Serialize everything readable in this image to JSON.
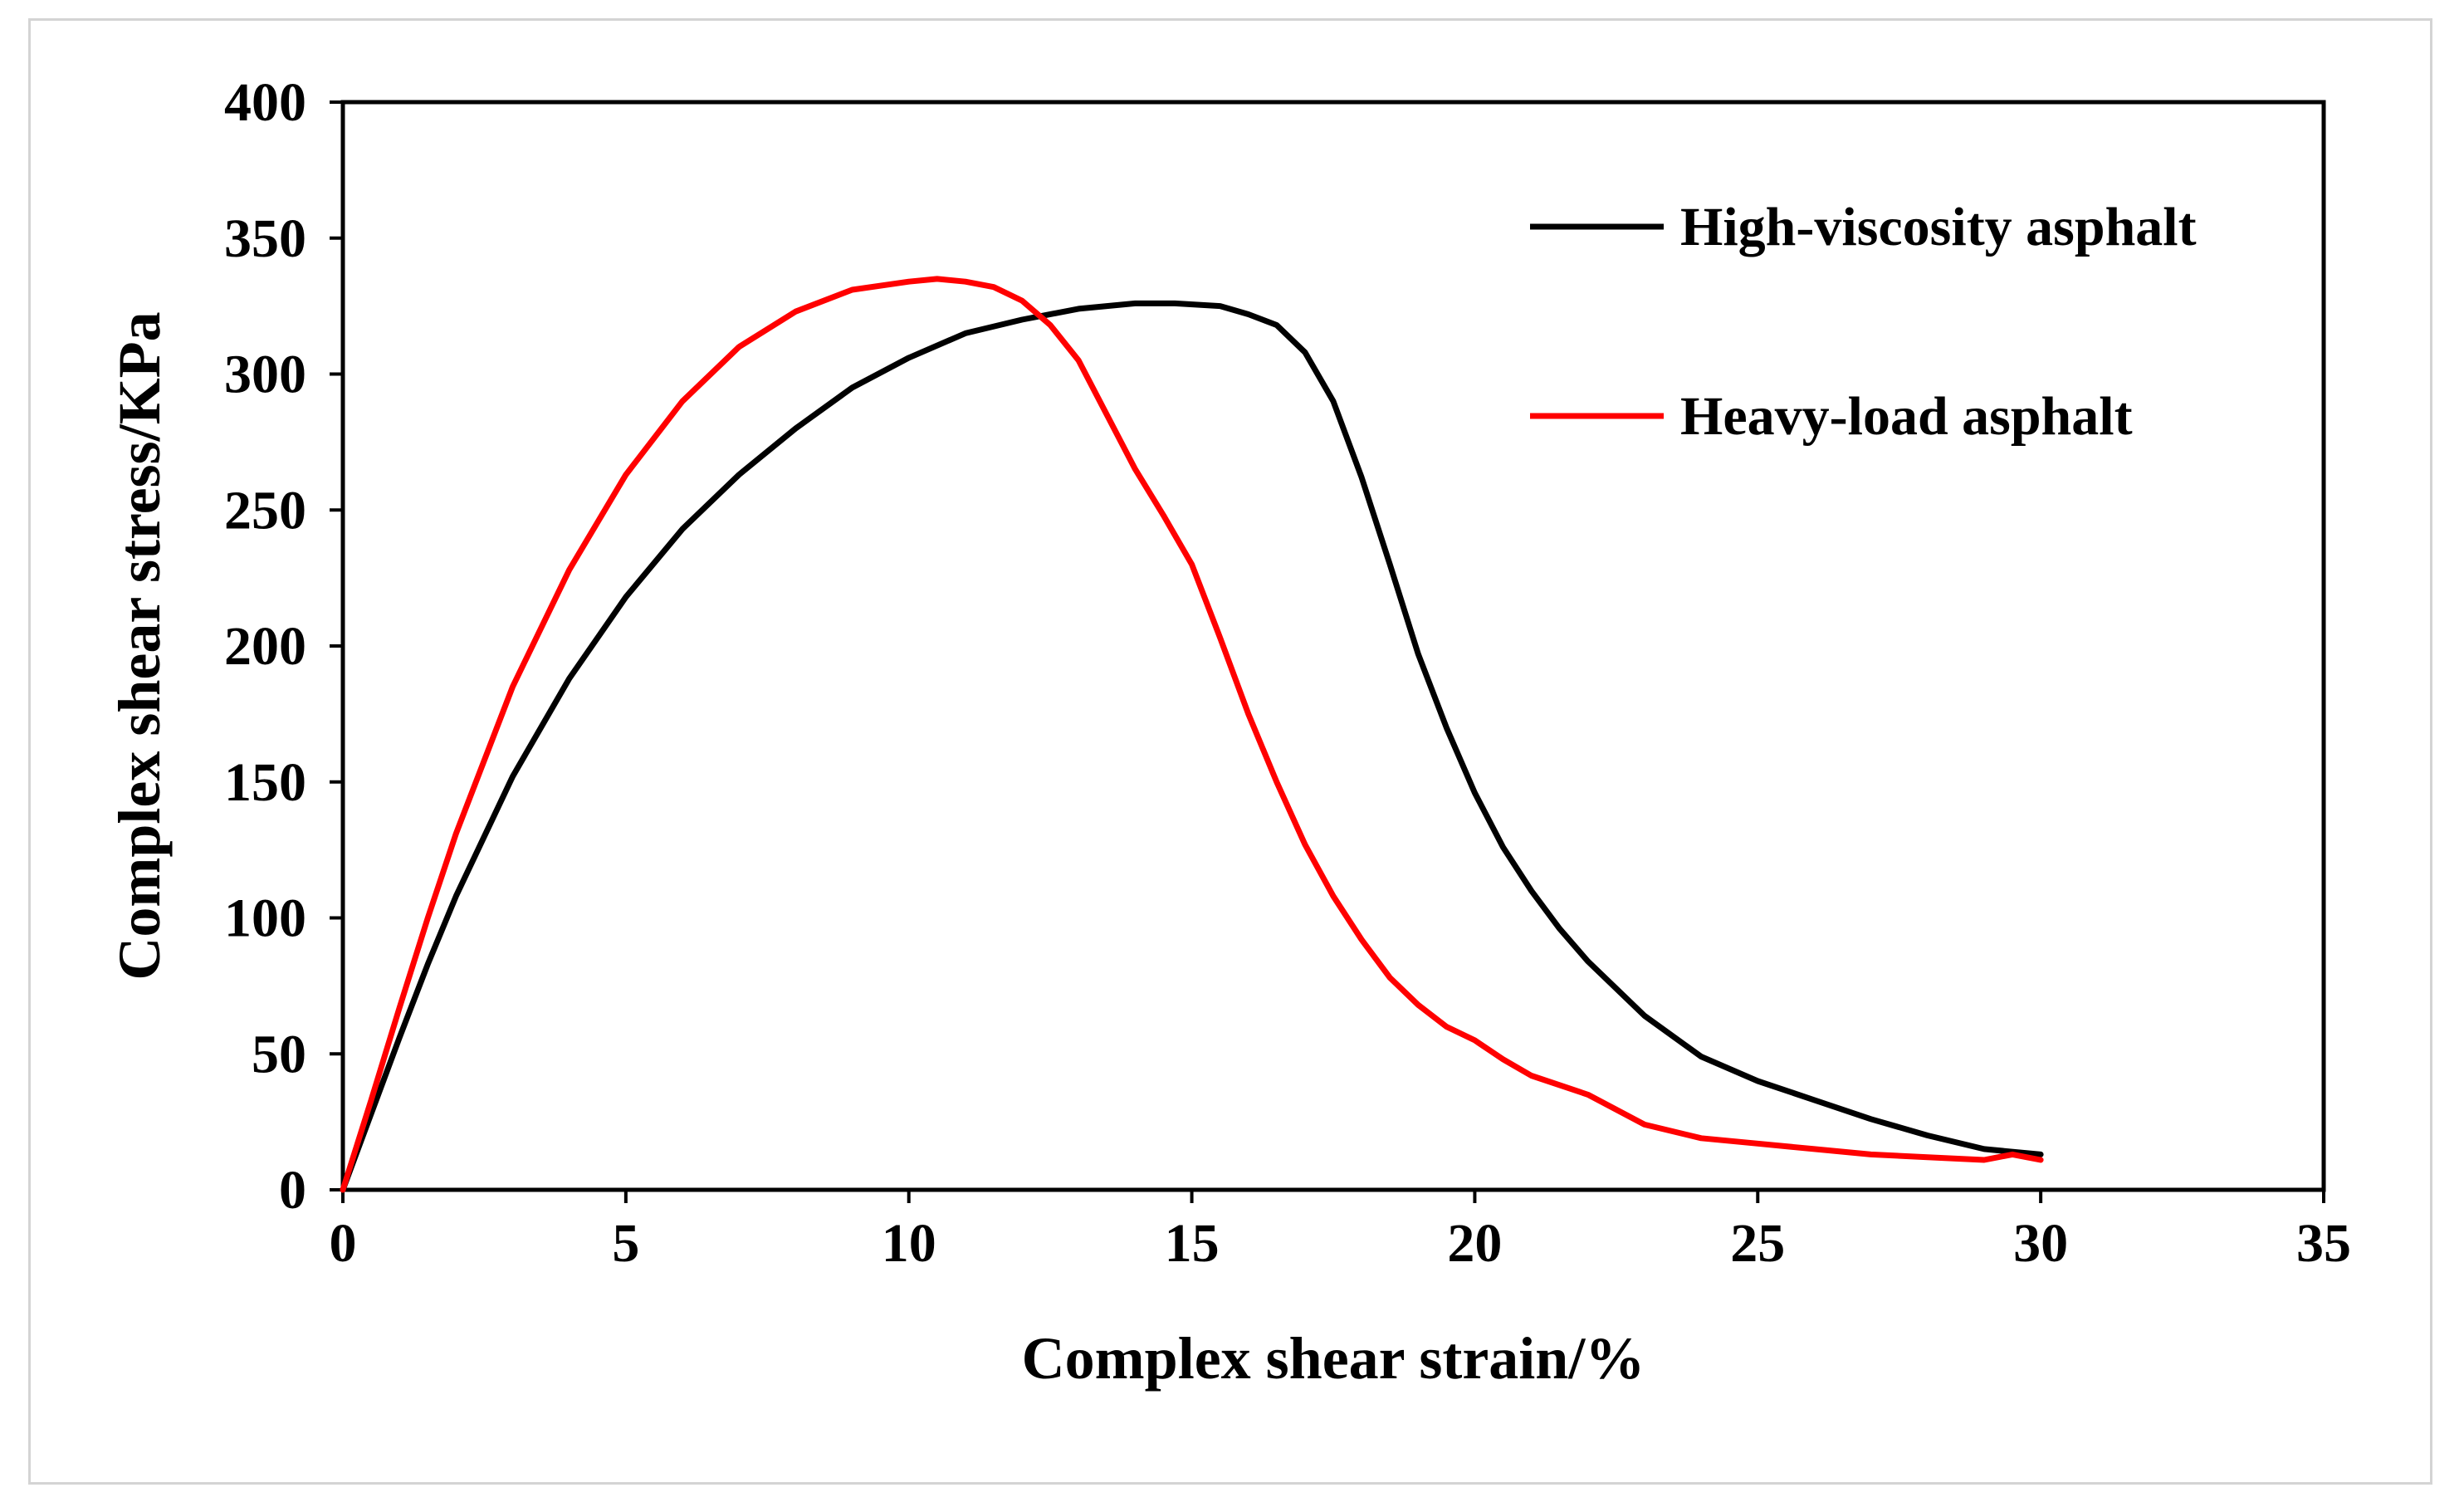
{
  "chart_data": {
    "type": "line",
    "title": "",
    "xlabel": "Complex shear strain/%",
    "ylabel": "Complex shear stress/KPa",
    "xlim": [
      0,
      35
    ],
    "ylim": [
      0,
      400
    ],
    "xticks": [
      0,
      5,
      10,
      15,
      20,
      25,
      30,
      35
    ],
    "yticks": [
      0,
      50,
      100,
      150,
      200,
      250,
      300,
      350,
      400
    ],
    "grid": false,
    "legend_position": "top-right",
    "series": [
      {
        "name": "High-viscosity asphalt",
        "color": "#000000",
        "x": [
          0,
          0.5,
          1,
          1.5,
          2,
          3,
          4,
          5,
          6,
          7,
          8,
          9,
          10,
          11,
          12,
          13,
          14,
          14.7,
          15.5,
          16,
          16.5,
          17,
          17.5,
          18,
          18.5,
          19,
          19.5,
          20,
          20.5,
          21,
          21.5,
          22,
          23,
          24,
          25,
          26,
          27,
          28,
          29,
          30
        ],
        "y": [
          0,
          28,
          56,
          83,
          108,
          152,
          188,
          218,
          243,
          263,
          280,
          295,
          306,
          315,
          320,
          324,
          326,
          326,
          325,
          322,
          318,
          308,
          290,
          262,
          230,
          197,
          170,
          146,
          126,
          110,
          96,
          84,
          64,
          49,
          40,
          33,
          26,
          20,
          15,
          13
        ]
      },
      {
        "name": "Heavy-load asphalt",
        "color": "#ff0000",
        "x": [
          0,
          0.5,
          1,
          1.5,
          2,
          3,
          4,
          5,
          6,
          7,
          8,
          9,
          10,
          10.5,
          11,
          11.5,
          12,
          12.5,
          13,
          13.5,
          14,
          14.5,
          15,
          15.5,
          16,
          16.5,
          17,
          17.5,
          18,
          18.5,
          19,
          19.5,
          20,
          20.5,
          21,
          22,
          23,
          24,
          25,
          26,
          27,
          28,
          29,
          29.5,
          30
        ],
        "y": [
          0,
          33,
          67,
          100,
          131,
          185,
          228,
          263,
          290,
          310,
          323,
          331,
          334,
          335,
          334,
          332,
          327,
          318,
          305,
          285,
          265,
          248,
          230,
          203,
          175,
          150,
          127,
          108,
          92,
          78,
          68,
          60,
          55,
          48,
          42,
          35,
          24,
          19,
          17,
          15,
          13,
          12,
          11,
          13,
          11
        ]
      }
    ]
  }
}
